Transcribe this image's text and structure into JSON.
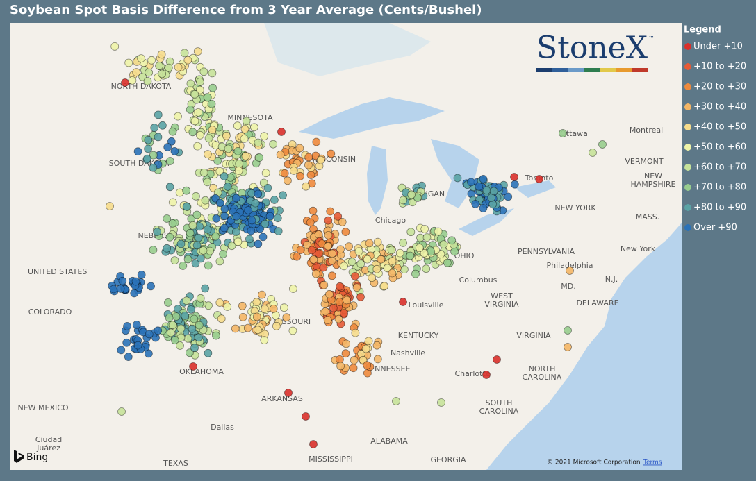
{
  "title": "Soybean Spot Basis Difference from 3 Year Average (Cents/Bushel)",
  "legend": {
    "title": "Legend",
    "items": [
      {
        "label": "Under +10",
        "color": "#d9302b"
      },
      {
        "label": "+10 to +20",
        "color": "#e55a36"
      },
      {
        "label": "+20 to +30",
        "color": "#ee8a3d"
      },
      {
        "label": "+30 to +40",
        "color": "#f4b666"
      },
      {
        "label": "+40 to +50",
        "color": "#f6dc8c"
      },
      {
        "label": "+50 to +60",
        "color": "#eef3a8"
      },
      {
        "label": "+60 to +70",
        "color": "#c6e29a"
      },
      {
        "label": "+70 to +80",
        "color": "#98cd8e"
      },
      {
        "label": "+80 to +90",
        "color": "#5aa3a5"
      },
      {
        "label": "Over +90",
        "color": "#2a72b8"
      }
    ]
  },
  "logo": {
    "text": "StoneX",
    "mark": "™"
  },
  "map": {
    "provider": "Bing",
    "attribution": "© 2021 Microsoft Corporation",
    "terms": "Terms",
    "labels": [
      [
        "NORTH DAKOTA"
      ],
      [
        "MINNESOTA"
      ],
      [
        "SOUTH DAKOTA"
      ],
      [
        "WISCONSIN"
      ],
      [
        "MICHIGAN"
      ],
      [
        "NEBRASKA"
      ],
      [
        "UNITED STATES"
      ],
      [
        "COLORADO"
      ],
      [
        "MISSOURI"
      ],
      [
        "Chicago"
      ],
      [
        "Ottawa"
      ],
      [
        "Montreal"
      ],
      [
        "Toronto"
      ],
      [
        "VERMONT"
      ],
      [
        "NEW",
        "HAMPSHIRE"
      ],
      [
        "NEW YORK"
      ],
      [
        "MASS."
      ],
      [
        "New York"
      ],
      [
        "PENNSYLVANIA"
      ],
      [
        "Philadelphia"
      ],
      [
        "N.J."
      ],
      [
        "MD."
      ],
      [
        "DELAWARE"
      ],
      [
        "Columbus"
      ],
      [
        "WEST",
        "VIRGINIA"
      ],
      [
        "Louisville"
      ],
      [
        "KENTUCKY"
      ],
      [
        "VIRGINIA"
      ],
      [
        "Nashville"
      ],
      [
        "TENNESSEE"
      ],
      [
        "Charlotte"
      ],
      [
        "NORTH",
        "CAROLINA"
      ],
      [
        "OKLAHOMA"
      ],
      [
        "ARKANSAS"
      ],
      [
        "SOUTH",
        "CAROLINA"
      ],
      [
        "NEW MEXICO"
      ],
      [
        "Dallas"
      ],
      [
        "ALABAMA"
      ],
      [
        "Ciudad",
        "Juárez"
      ],
      [
        "TEXAS"
      ],
      [
        "MISSISSIPPI"
      ],
      [
        "GEORGIA"
      ],
      [
        "OHIO"
      ]
    ]
  }
}
